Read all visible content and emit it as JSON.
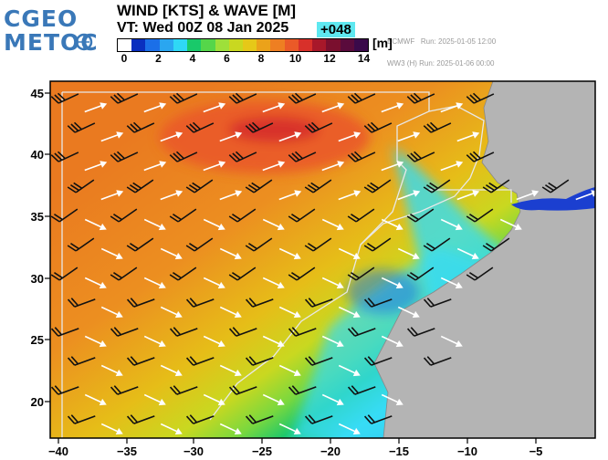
{
  "logo": {
    "line1": "CGEO",
    "line2": "METOC"
  },
  "title": "WIND [KTS] & WAVE [M]",
  "valid_time": "VT: Wed 00Z 08 Jan 2025",
  "forecast_hour": "+048",
  "runs": [
    "ECMWF   Run: 2025-01-05 12:00",
    "WW3 (H) Run: 2025-01-06 00:00"
  ],
  "legend": {
    "unit": "[m]",
    "ticks": [
      "0",
      "2",
      "4",
      "6",
      "8",
      "10",
      "12",
      "14"
    ],
    "colors": [
      "#ffffff",
      "#0a2fbf",
      "#1b6fe8",
      "#2aa6f0",
      "#2fd8f5",
      "#19c96a",
      "#55d64a",
      "#9ee03a",
      "#c9d820",
      "#e6c818",
      "#eba21a",
      "#ee7f22",
      "#ea5a28",
      "#d8302a",
      "#a8182a",
      "#7a0f2e",
      "#5a0b3c",
      "#3a0a4a"
    ]
  },
  "axes": {
    "lon_labels": [
      "−40",
      "−35",
      "−30",
      "−25",
      "−20",
      "−15",
      "−10",
      "−5"
    ],
    "lat_labels": [
      "45",
      "40",
      "35",
      "30",
      "25",
      "20"
    ]
  },
  "colors": {
    "land": "#b4b4b4",
    "border": "#e8e8e8"
  }
}
